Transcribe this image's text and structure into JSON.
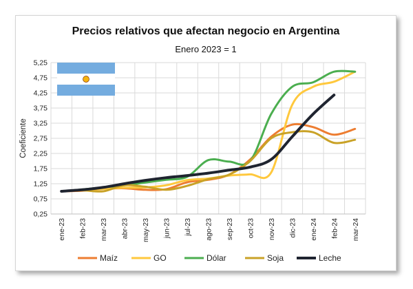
{
  "chart_data": {
    "type": "line",
    "title": "Precios relativos que afectan negocio en Argentina",
    "subtitle": "Enero 2023 = 1",
    "xlabel": "",
    "ylabel": "Coeficiente",
    "categories": [
      "ene-23",
      "feb-23",
      "mar-23",
      "abr-23",
      "may-23",
      "jun-23",
      "jul-23",
      "ago-23",
      "sep-23",
      "oct-23",
      "nov-23",
      "dic-23",
      "ene-24",
      "feb-24",
      "mar-24"
    ],
    "yticks": [
      "0,25",
      "0,75",
      "1,25",
      "1,75",
      "2,25",
      "2,75",
      "3,25",
      "3,75",
      "4,25",
      "4,75",
      "5,25"
    ],
    "ylim": [
      0.25,
      5.25
    ],
    "grid": true,
    "legend_position": "bottom",
    "series": [
      {
        "name": "Maíz",
        "color": "#ED7D31",
        "values": [
          1.0,
          1.02,
          1.08,
          1.1,
          1.05,
          1.07,
          1.3,
          1.38,
          1.55,
          2.05,
          2.8,
          3.2,
          3.12,
          2.87,
          3.06
        ]
      },
      {
        "name": "GO",
        "color": "#FFC83D",
        "values": [
          1.0,
          1.04,
          1.08,
          1.12,
          1.13,
          1.2,
          1.37,
          1.42,
          1.52,
          1.56,
          1.62,
          3.85,
          4.45,
          4.62,
          4.95
        ]
      },
      {
        "name": "Dólar",
        "color": "#4BAE4F",
        "values": [
          1.0,
          1.06,
          1.13,
          1.2,
          1.29,
          1.38,
          1.48,
          2.03,
          1.98,
          2.0,
          3.55,
          4.45,
          4.6,
          4.95,
          4.95
        ]
      },
      {
        "name": "Soja",
        "color": "#C9A227",
        "values": [
          1.0,
          1.03,
          1.0,
          1.2,
          1.15,
          1.05,
          1.18,
          1.4,
          1.55,
          2.0,
          2.75,
          2.95,
          2.95,
          2.6,
          2.7
        ]
      },
      {
        "name": "Leche",
        "color": "#1F2430",
        "values": [
          1.0,
          1.05,
          1.13,
          1.25,
          1.36,
          1.45,
          1.52,
          1.6,
          1.7,
          1.8,
          2.05,
          2.8,
          3.55,
          4.18,
          null
        ]
      }
    ]
  },
  "flag_icon": "argentina-flag-icon"
}
